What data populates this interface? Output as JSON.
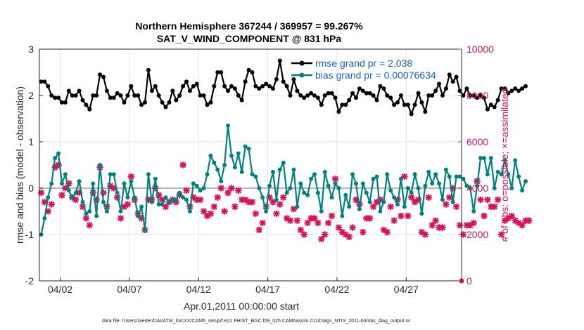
{
  "chart_data": {
    "type": "line",
    "title": "Northern Hemisphere 367244 / 369957 = 99.267%",
    "subtitle": "SAT_V_WIND_COMPONENT @ 831 hPa",
    "xlabel": "Apr.01,2011 00:00:00 start",
    "ylabel": "rmse and bias (model - observation)",
    "ylabel_right": "# of obs: o=possible; ×=assimilated",
    "footer": "data file: /Users/raeder/DAI/ATM_forcXX/CAM6_setup/f.e21.FHIST_BGC.f09_025.CAM6assim.011/Diags_NTrS_2011-04/obs_diag_output.nc",
    "xlim": [
      0.5,
      31.0
    ],
    "ylim": [
      -2,
      3
    ],
    "ylim_right": [
      0,
      10000
    ],
    "y_ticks": [
      -2,
      -1,
      0,
      1,
      2,
      3
    ],
    "y_ticks_right": [
      0,
      2000,
      4000,
      6000,
      8000,
      10000
    ],
    "x_ticks": [
      {
        "pos": 2,
        "label": "04/02"
      },
      {
        "pos": 7,
        "label": "04/07"
      },
      {
        "pos": 12,
        "label": "04/12"
      },
      {
        "pos": 17,
        "label": "04/17"
      },
      {
        "pos": 22,
        "label": "04/22"
      },
      {
        "pos": 27,
        "label": "04/27"
      }
    ],
    "grid": true,
    "legend_position": "top-right",
    "x_start": 0.625,
    "x_step": 0.25,
    "series": [
      {
        "name": "rmse grand pr = 2.038",
        "color": "#000000",
        "axis": "left",
        "values": [
          2.3,
          2.3,
          2.2,
          2.0,
          1.95,
          1.95,
          1.85,
          1.85,
          2.1,
          2.0,
          2.0,
          2.1,
          1.9,
          1.8,
          1.7,
          2.0,
          2.0,
          2.45,
          2.4,
          2.1,
          1.95,
          1.95,
          2.05,
          2.0,
          1.85,
          2.0,
          2.2,
          2.0,
          2.0,
          1.8,
          1.85,
          2.55,
          2.1,
          2.2,
          2.0,
          1.85,
          1.75,
          1.85,
          2.1,
          1.9,
          2.0,
          2.2,
          2.3,
          2.1,
          2.2,
          2.25,
          2.0,
          2.0,
          1.8,
          1.85,
          2.2,
          2.5,
          2.5,
          2.2,
          2.1,
          2.2,
          2.15,
          2.0,
          1.9,
          2.3,
          2.55,
          2.5,
          2.2,
          2.15,
          2.2,
          2.25,
          2.2,
          2.15,
          2.35,
          2.75,
          2.3,
          2.2,
          2.0,
          2.35,
          2.1,
          2.0,
          1.95,
          2.0,
          2.05,
          2.0,
          1.95,
          1.8,
          2.0,
          2.05,
          2.05,
          1.95,
          1.65,
          1.8,
          1.8,
          1.9,
          2.05,
          1.95,
          2.15,
          2.1,
          2.05,
          2.05,
          2.0,
          1.9,
          2.2,
          2.15,
          2.0,
          1.95,
          1.8,
          1.85,
          2.0,
          1.8,
          1.8,
          1.6,
          1.8,
          2.05,
          1.85,
          1.65,
          2.0,
          2.0,
          2.1,
          2.25,
          2.0,
          2.15,
          2.45,
          2.3,
          2.4,
          2.1,
          2.0,
          2.15,
          2.0,
          2.0,
          1.95,
          2.0,
          1.95,
          1.7,
          1.8,
          1.75,
          1.9,
          2.15,
          2.15,
          2.05,
          2.1,
          2.15,
          2.1,
          2.15,
          2.2
        ]
      },
      {
        "name": "bias grand pr = 0.00076634",
        "color": "#00807f",
        "axis": "left",
        "values": [
          -1.0,
          -0.65,
          -0.2,
          0.1,
          0.65,
          0.75,
          0.1,
          0.3,
          -0.05,
          -0.2,
          -0.1,
          0.15,
          -0.3,
          -0.55,
          -0.5,
          0.1,
          -0.6,
          0.5,
          -0.3,
          -0.5,
          0.3,
          0.3,
          -0.1,
          -0.5,
          0.1,
          -0.2,
          0.15,
          -0.2,
          -0.6,
          -0.4,
          -0.9,
          0.3,
          -0.3,
          0.2,
          -0.35,
          -0.35,
          -0.2,
          -0.3,
          -0.25,
          -0.25,
          -0.1,
          -0.2,
          -0.25,
          -0.5,
          0.1,
          0.05,
          -0.05,
          0.0,
          0.3,
          0.7,
          0.55,
          0.4,
          0.15,
          0.5,
          1.35,
          0.7,
          0.45,
          0.75,
          0.35,
          0.9,
          0.85,
          0.3,
          0.25,
          0.0,
          -0.2,
          -0.5,
          0.05,
          0.35,
          -0.25,
          0.4,
          0.55,
          -0.1,
          0.0,
          0.4,
          -0.4,
          0.1,
          -0.1,
          -0.15,
          0.2,
          0.3,
          -0.1,
          -0.5,
          0.35,
          0.05,
          -0.2,
          0.1,
          0.0,
          -0.6,
          -0.15,
          -0.4,
          0.3,
          0.1,
          -0.45,
          0.1,
          -0.1,
          -0.3,
          0.2,
          0.25,
          -0.5,
          -0.3,
          0.3,
          -0.05,
          -0.2,
          -0.35,
          0.2,
          -0.4,
          0.0,
          -0.1,
          0.3,
          0.0,
          -0.55,
          0.05,
          0.35,
          0.1,
          0.3,
          0.1,
          -0.25,
          0.4,
          0.25,
          -0.3,
          0.25,
          0.25,
          0.2,
          0.05,
          0.0,
          -0.5,
          0.05,
          0.65,
          0.65,
          0.3,
          0.65,
          0.0,
          0.35,
          0.3,
          0.6,
          0.3,
          0.0,
          0.6,
          0.25,
          -0.05,
          0.15
        ]
      },
      {
        "name": "obs possible",
        "color": "#d6145a",
        "axis": "right",
        "marker": "o",
        "values": [
          3800,
          3400,
          3000,
          3300,
          4900,
          5000,
          3700,
          4000,
          4200,
          3600,
          3500,
          3800,
          3200,
          2700,
          2400,
          3800,
          3500,
          4900,
          3800,
          3200,
          4100,
          4000,
          3600,
          2700,
          3200,
          3300,
          4500,
          3500,
          2900,
          2700,
          2200,
          3500,
          3500,
          4000,
          3700,
          3500,
          3200,
          3400,
          3500,
          3400,
          3700,
          5000,
          3900,
          3200,
          3600,
          3500,
          3500,
          3000,
          2800,
          2900,
          3200,
          3600,
          4000,
          3000,
          3800,
          4000,
          3200,
          3900,
          3500,
          3500,
          3400,
          3400,
          2900,
          2200,
          2500,
          3200,
          3600,
          3400,
          2900,
          3300,
          3600,
          2700,
          2600,
          3100,
          2600,
          2200,
          2000,
          2500,
          2700,
          2700,
          2500,
          1800,
          2000,
          2500,
          2800,
          4400,
          2300,
          2100,
          2000,
          1900,
          2300,
          3500,
          3300,
          2100,
          2700,
          2700,
          3200,
          3400,
          3500,
          2200,
          2100,
          3200,
          2600,
          3500,
          2800,
          4500,
          2800,
          3600,
          3400,
          3500,
          2100,
          2000,
          3600,
          2400,
          2600,
          2300,
          2300,
          3300,
          3600,
          4000,
          3200,
          2400,
          2000,
          2400,
          2400,
          2500,
          4300,
          3500,
          2800,
          3500,
          3200,
          3200,
          3500,
          2000,
          2600,
          2700,
          2800,
          2600,
          2500,
          2400,
          2600,
          2600
        ]
      }
    ]
  }
}
